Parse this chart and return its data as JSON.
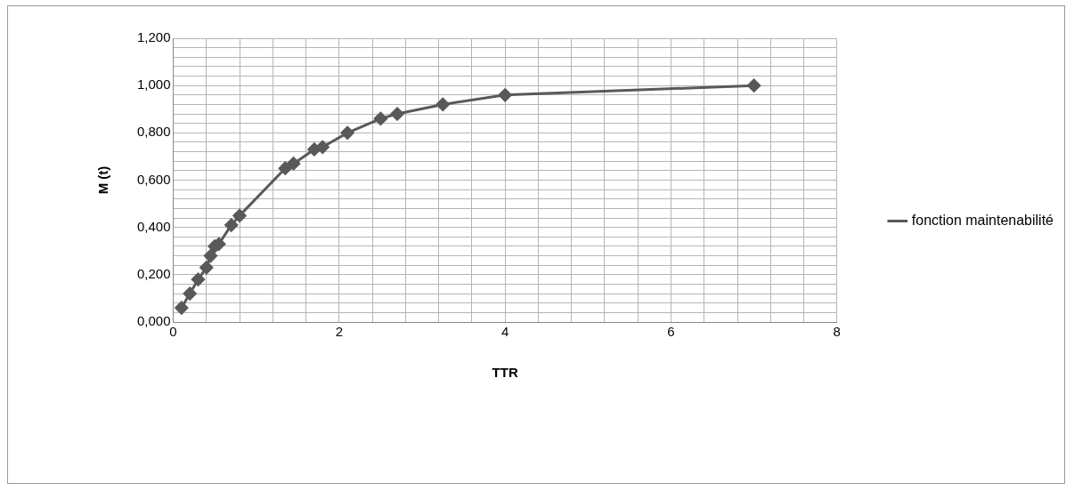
{
  "chart_data": {
    "type": "line",
    "xlabel": "TTR",
    "ylabel": "M (t)",
    "x": [
      0.1,
      0.2,
      0.3,
      0.4,
      0.45,
      0.5,
      0.55,
      0.7,
      0.8,
      1.35,
      1.45,
      1.7,
      1.8,
      2.1,
      2.5,
      2.7,
      3.25,
      4,
      7
    ],
    "series": [
      {
        "name": "fonction maintenabilité",
        "color": "#595959",
        "values": [
          0.06,
          0.12,
          0.18,
          0.23,
          0.28,
          0.32,
          0.33,
          0.41,
          0.45,
          0.65,
          0.67,
          0.73,
          0.74,
          0.8,
          0.86,
          0.88,
          0.92,
          0.96,
          1.0
        ]
      }
    ],
    "xlim": [
      0,
      8
    ],
    "ylim": [
      0,
      1.2
    ],
    "xticks": [
      0,
      {
        "value": 0.4,
        "label": null
      },
      {
        "value": 0.8,
        "label": null
      },
      {
        "value": 1.2,
        "label": null
      },
      {
        "value": 1.6,
        "label": null
      },
      2,
      {
        "value": 2.4,
        "label": null
      },
      {
        "value": 2.8,
        "label": null
      },
      {
        "value": 3.2,
        "label": null
      },
      {
        "value": 3.6,
        "label": null
      },
      4,
      {
        "value": 4.4,
        "label": null
      },
      {
        "value": 4.8,
        "label": null
      },
      {
        "value": 5.2,
        "label": null
      },
      {
        "value": 5.6,
        "label": null
      },
      6,
      {
        "value": 6.4,
        "label": null
      },
      {
        "value": 6.8,
        "label": null
      },
      {
        "value": 7.2,
        "label": null
      },
      {
        "value": 7.6,
        "label": null
      },
      8
    ],
    "yticks": [
      {
        "value": 0,
        "label": "0,000"
      },
      {
        "value": 0.04,
        "label": null
      },
      {
        "value": 0.08,
        "label": null
      },
      {
        "value": 0.12,
        "label": null
      },
      {
        "value": 0.16,
        "label": null
      },
      {
        "value": 0.2,
        "label": "0,200"
      },
      {
        "value": 0.24,
        "label": null
      },
      {
        "value": 0.28,
        "label": null
      },
      {
        "value": 0.32,
        "label": null
      },
      {
        "value": 0.36,
        "label": null
      },
      {
        "value": 0.4,
        "label": "0,400"
      },
      {
        "value": 0.44,
        "label": null
      },
      {
        "value": 0.48,
        "label": null
      },
      {
        "value": 0.52,
        "label": null
      },
      {
        "value": 0.56,
        "label": null
      },
      {
        "value": 0.6,
        "label": "0,600"
      },
      {
        "value": 0.64,
        "label": null
      },
      {
        "value": 0.68,
        "label": null
      },
      {
        "value": 0.72,
        "label": null
      },
      {
        "value": 0.76,
        "label": null
      },
      {
        "value": 0.8,
        "label": "0,800"
      },
      {
        "value": 0.84,
        "label": null
      },
      {
        "value": 0.88,
        "label": null
      },
      {
        "value": 0.92,
        "label": null
      },
      {
        "value": 0.96,
        "label": null
      },
      {
        "value": 1.0,
        "label": "1,000"
      },
      {
        "value": 1.04,
        "label": null
      },
      {
        "value": 1.08,
        "label": null
      },
      {
        "value": 1.12,
        "label": null
      },
      {
        "value": 1.16,
        "label": null
      },
      {
        "value": 1.2,
        "label": "1,200"
      }
    ],
    "grid": true,
    "legend": "right",
    "marker": "diamond",
    "line_style": "solid"
  }
}
